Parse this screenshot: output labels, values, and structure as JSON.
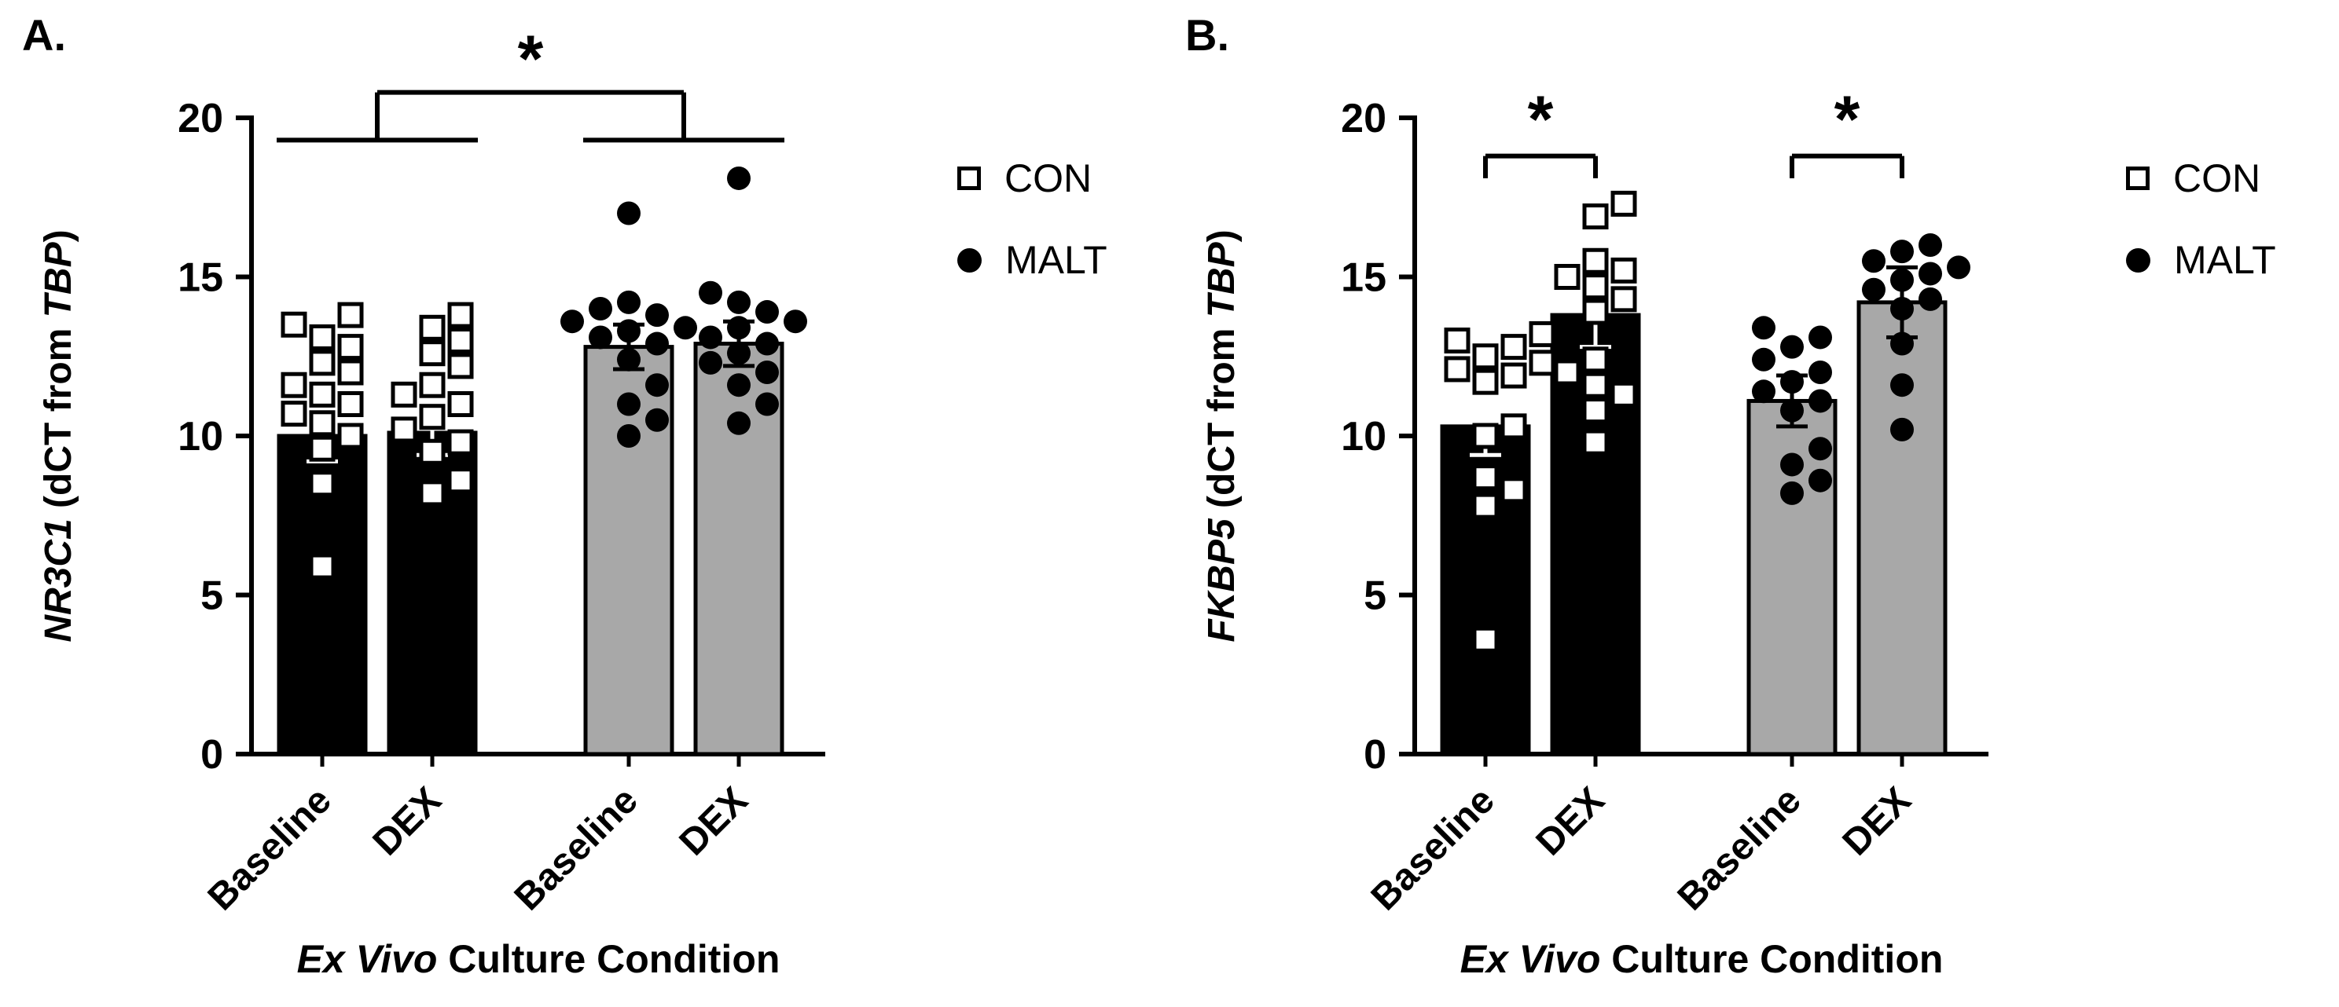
{
  "figure": {
    "background_color": "#ffffff",
    "text_color": "#000000",
    "bar_black": "#000000",
    "bar_gray": "#a8a8a8"
  },
  "chart_data": [
    {
      "type": "bar",
      "panel_label": "A.",
      "ylabel_parts": [
        {
          "text": "NR3C1",
          "italic": true
        },
        {
          "text": " (dCT from ",
          "italic": false
        },
        {
          "text": "TBP",
          "italic": true
        },
        {
          "text": ")",
          "italic": false
        }
      ],
      "xlabel_parts": [
        {
          "text": "Ex Vivo",
          "italic": true
        },
        {
          "text": " Culture Condition",
          "italic": false
        }
      ],
      "ylim": [
        0,
        20
      ],
      "yticks": [
        0,
        5,
        10,
        15,
        20
      ],
      "grid": false,
      "legend_position": "right",
      "x_categories": [
        "Baseline",
        "DEX",
        "Baseline",
        "DEX"
      ],
      "bars": [
        {
          "group": "CON",
          "condition": "Baseline",
          "color": "#000000",
          "marker": "open-square",
          "mean": 10.0,
          "error": 0.8,
          "points": [
            5.9,
            8.5,
            9.6,
            10.0,
            10.4,
            10.7,
            11.0,
            11.3,
            11.6,
            12.0,
            12.3,
            12.8,
            13.1,
            13.5,
            13.8
          ]
        },
        {
          "group": "CON",
          "condition": "DEX",
          "color": "#000000",
          "marker": "open-square",
          "mean": 10.1,
          "error": 0.7,
          "points": [
            8.2,
            8.6,
            9.5,
            9.8,
            10.2,
            10.6,
            11.0,
            11.3,
            11.6,
            12.2,
            12.6,
            13.0,
            13.4,
            13.8
          ]
        },
        {
          "group": "MALT",
          "condition": "Baseline",
          "color": "#a8a8a8",
          "marker": "filled-circle",
          "mean": 12.8,
          "error": 0.7,
          "points": [
            10.0,
            10.5,
            11.0,
            11.6,
            12.4,
            12.9,
            13.1,
            13.3,
            13.4,
            13.6,
            13.8,
            14.0,
            14.2,
            17.0
          ]
        },
        {
          "group": "MALT",
          "condition": "DEX",
          "color": "#a8a8a8",
          "marker": "filled-circle",
          "mean": 12.9,
          "error": 0.7,
          "points": [
            10.4,
            11.0,
            11.6,
            12.0,
            12.3,
            12.6,
            12.9,
            13.1,
            13.4,
            13.6,
            13.9,
            14.2,
            14.5,
            18.1
          ]
        }
      ],
      "significance": [
        {
          "style": "nested",
          "pairs": [
            [
              0,
              1
            ],
            [
              2,
              3
            ]
          ],
          "label": "*",
          "y_low": 19.3,
          "y_high": 20.8
        }
      ],
      "legend": {
        "items": [
          {
            "label": "CON",
            "marker": "open-square"
          },
          {
            "label": "MALT",
            "marker": "filled-circle"
          }
        ]
      }
    },
    {
      "type": "bar",
      "panel_label": "B.",
      "ylabel_parts": [
        {
          "text": "FKBP5",
          "italic": true
        },
        {
          "text": " (dCT from ",
          "italic": false
        },
        {
          "text": "TBP",
          "italic": true
        },
        {
          "text": ")",
          "italic": false
        }
      ],
      "xlabel_parts": [
        {
          "text": "Ex  Vivo",
          "italic": true
        },
        {
          "text": " Culture Condition",
          "italic": false
        }
      ],
      "ylim": [
        0,
        20
      ],
      "yticks": [
        0,
        5,
        10,
        15,
        20
      ],
      "grid": false,
      "legend_position": "right",
      "x_categories": [
        "Baseline",
        "DEX",
        "Baseline",
        "DEX"
      ],
      "bars": [
        {
          "group": "CON",
          "condition": "Baseline",
          "color": "#000000",
          "marker": "open-square",
          "mean": 10.3,
          "error": 0.9,
          "points": [
            3.6,
            7.8,
            8.3,
            8.7,
            10.0,
            10.3,
            11.7,
            11.9,
            12.1,
            12.3,
            12.5,
            12.8,
            13.0,
            13.2
          ]
        },
        {
          "group": "CON",
          "condition": "DEX",
          "color": "#000000",
          "marker": "open-square",
          "mean": 13.8,
          "error": 1.0,
          "points": [
            9.8,
            10.8,
            11.3,
            11.6,
            12.0,
            12.4,
            13.9,
            14.3,
            14.7,
            15.0,
            15.2,
            15.5,
            16.9,
            17.3
          ]
        },
        {
          "group": "MALT",
          "condition": "Baseline",
          "color": "#a8a8a8",
          "marker": "filled-circle",
          "mean": 11.1,
          "error": 0.8,
          "points": [
            8.2,
            8.6,
            9.1,
            9.6,
            10.8,
            11.1,
            11.4,
            11.7,
            12.0,
            12.4,
            12.8,
            13.1,
            13.4
          ]
        },
        {
          "group": "MALT",
          "condition": "DEX",
          "color": "#a8a8a8",
          "marker": "filled-circle",
          "mean": 14.2,
          "error": 1.1,
          "points": [
            10.2,
            11.6,
            12.9,
            14.0,
            14.3,
            14.6,
            14.9,
            15.1,
            15.3,
            15.5,
            15.8,
            16.0
          ]
        }
      ],
      "significance": [
        {
          "style": "simple",
          "pair": [
            0,
            1
          ],
          "label": "*",
          "y": 18.8
        },
        {
          "style": "simple",
          "pair": [
            2,
            3
          ],
          "label": "*",
          "y": 18.8
        }
      ],
      "legend": {
        "items": [
          {
            "label": "CON",
            "marker": "open-square"
          },
          {
            "label": "MALT",
            "marker": "filled-circle"
          }
        ]
      }
    }
  ]
}
